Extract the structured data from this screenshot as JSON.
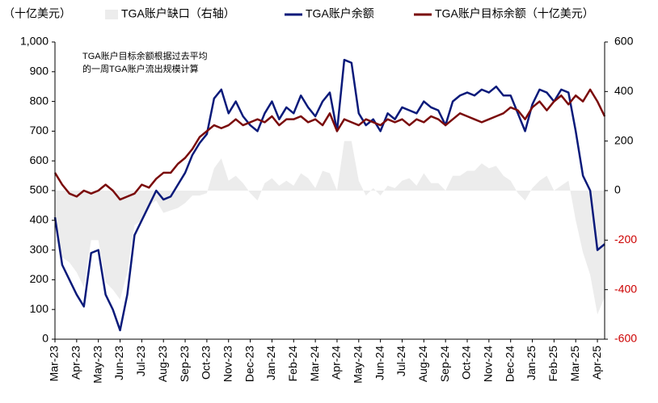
{
  "chart_data": {
    "type": "line",
    "y_axis_label": "（十亿美元）",
    "annotation": [
      "TGA账户目标余额根据过去平均",
      "的一周TGA账户流出规模计算"
    ],
    "categories": [
      "Mar-23",
      null,
      null,
      "Apr-23",
      null,
      null,
      "May-23",
      null,
      null,
      "Jun-23",
      null,
      null,
      "Jul-23",
      null,
      null,
      "Aug-23",
      null,
      null,
      "Sep-23",
      null,
      null,
      "Oct-23",
      null,
      null,
      "Nov-23",
      null,
      null,
      "Dec-23",
      null,
      null,
      "Jan-24",
      null,
      null,
      "Feb-24",
      null,
      null,
      "Mar-24",
      null,
      null,
      "Apr-24",
      null,
      null,
      "May-24",
      null,
      null,
      "Jun-24",
      null,
      null,
      "Jul-24",
      null,
      null,
      "Aug-24",
      null,
      null,
      "Sep-24",
      null,
      null,
      "Oct-24",
      null,
      null,
      "Nov-24",
      null,
      null,
      "Dec-24",
      null,
      null,
      "Jan-25",
      null,
      null,
      "Feb-25",
      null,
      null,
      "Mar-25",
      null,
      null,
      "Apr-25",
      null
    ],
    "series": [
      {
        "name": "TGA账户缺口（右轴）",
        "color": "#ececec",
        "axis": "y2",
        "kind": "area",
        "values": [
          -150,
          -270,
          -290,
          -330,
          -390,
          -200,
          -200,
          -370,
          -400,
          -440,
          -330,
          -140,
          -120,
          -60,
          -40,
          -90,
          -80,
          -70,
          -50,
          -20,
          -20,
          -10,
          90,
          130,
          40,
          60,
          30,
          -10,
          -40,
          30,
          50,
          20,
          40,
          20,
          70,
          50,
          10,
          80,
          70,
          0,
          200,
          200,
          40,
          -20,
          10,
          -20,
          20,
          10,
          40,
          50,
          20,
          70,
          30,
          30,
          0,
          60,
          60,
          80,
          80,
          110,
          90,
          100,
          60,
          40,
          -10,
          -40,
          10,
          40,
          60,
          0,
          20,
          40,
          -120,
          -250,
          -340,
          -500,
          -430
        ]
      },
      {
        "name": "TGA账户余额",
        "color": "#0a1a7a",
        "kind": "line",
        "values": [
          410,
          250,
          200,
          150,
          110,
          290,
          300,
          150,
          100,
          30,
          150,
          350,
          400,
          450,
          500,
          470,
          480,
          520,
          560,
          620,
          660,
          690,
          810,
          840,
          760,
          800,
          750,
          720,
          700,
          760,
          800,
          740,
          780,
          760,
          820,
          780,
          750,
          800,
          830,
          700,
          940,
          930,
          760,
          720,
          740,
          700,
          760,
          740,
          780,
          770,
          760,
          800,
          780,
          770,
          720,
          800,
          820,
          830,
          820,
          840,
          830,
          850,
          820,
          820,
          760,
          700,
          790,
          840,
          830,
          800,
          840,
          830,
          700,
          550,
          500,
          300,
          320
        ]
      },
      {
        "name": "TGA账户目标余额（十亿美元）",
        "color": "#7a0a0a",
        "kind": "line",
        "values": [
          560,
          520,
          490,
          480,
          500,
          490,
          500,
          520,
          500,
          470,
          480,
          490,
          520,
          510,
          540,
          560,
          560,
          590,
          610,
          640,
          680,
          700,
          720,
          710,
          720,
          740,
          720,
          730,
          740,
          730,
          750,
          720,
          740,
          740,
          750,
          730,
          740,
          720,
          760,
          700,
          740,
          730,
          720,
          740,
          730,
          720,
          740,
          730,
          740,
          720,
          740,
          730,
          750,
          740,
          720,
          740,
          760,
          750,
          740,
          730,
          740,
          750,
          760,
          780,
          770,
          740,
          780,
          800,
          770,
          800,
          820,
          790,
          820,
          800,
          840,
          800,
          750
        ]
      }
    ],
    "ylim": [
      0,
      1000
    ],
    "yticks": [
      0,
      100,
      200,
      300,
      400,
      500,
      600,
      700,
      800,
      900,
      {
        "value": 1000,
        "label": "1,000"
      }
    ],
    "y2lim": [
      -600,
      600
    ],
    "y2ticks": [
      -600,
      -400,
      -200,
      0,
      200,
      400,
      600
    ],
    "y2_negative_color": "#cc0000"
  }
}
